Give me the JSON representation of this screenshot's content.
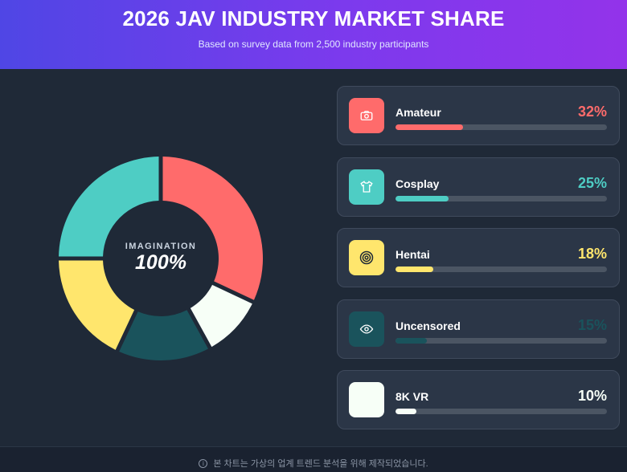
{
  "header": {
    "title": "2026 JAV INDUSTRY MARKET SHARE",
    "subtitle": "Based on survey data from 2,500 industry participants"
  },
  "center": {
    "label": "IMAGINATION",
    "value": "100%"
  },
  "footer": {
    "info_icon": "info-icon",
    "text": "본 차트는 가상의 업계 트렌드 분석을 위해 제작되었습니다."
  },
  "colors": {
    "background": "#1f2937",
    "header_gradient": [
      "#4f46e5",
      "#9333ea"
    ]
  },
  "chart_data": {
    "type": "pie",
    "donut": true,
    "title": "2026 JAV INDUSTRY MARKET SHARE",
    "subtitle": "Based on survey data from 2,500 industry participants",
    "categories": [
      "Amateur",
      "Cosplay",
      "Hentai",
      "Uncensored",
      "8K VR"
    ],
    "values": [
      32,
      25,
      18,
      15,
      10
    ],
    "display": [
      "32%",
      "25%",
      "18%",
      "15%",
      "10%"
    ],
    "slice_order_clockwise_from_top": [
      "Amateur",
      "8K VR",
      "Uncensored",
      "Hentai",
      "Cosplay"
    ],
    "colors": [
      "#ff6b6b",
      "#4ecdc4",
      "#ffe66d",
      "#1a535c",
      "#f7fff7"
    ],
    "icons": [
      "camera-icon",
      "shirt-icon",
      "target-icon",
      "eye-icon",
      "blank-icon"
    ],
    "legend_position": "right"
  }
}
